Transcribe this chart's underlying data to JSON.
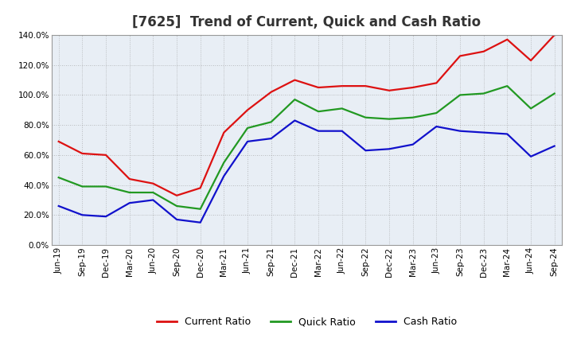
{
  "title": "[7625]  Trend of Current, Quick and Cash Ratio",
  "labels": [
    "Jun-19",
    "Sep-19",
    "Dec-19",
    "Mar-20",
    "Jun-20",
    "Sep-20",
    "Dec-20",
    "Mar-21",
    "Jun-21",
    "Sep-21",
    "Dec-21",
    "Mar-22",
    "Jun-22",
    "Sep-22",
    "Dec-22",
    "Mar-23",
    "Jun-23",
    "Sep-23",
    "Dec-23",
    "Mar-24",
    "Jun-24",
    "Sep-24"
  ],
  "current_ratio": [
    0.69,
    0.61,
    0.6,
    0.44,
    0.41,
    0.33,
    0.38,
    0.75,
    0.9,
    1.02,
    1.1,
    1.05,
    1.06,
    1.06,
    1.03,
    1.05,
    1.08,
    1.26,
    1.29,
    1.37,
    1.23,
    1.4
  ],
  "quick_ratio": [
    0.45,
    0.39,
    0.39,
    0.35,
    0.35,
    0.26,
    0.24,
    0.55,
    0.78,
    0.82,
    0.97,
    0.89,
    0.91,
    0.85,
    0.84,
    0.85,
    0.88,
    1.0,
    1.01,
    1.06,
    0.91,
    1.01
  ],
  "cash_ratio": [
    0.26,
    0.2,
    0.19,
    0.28,
    0.3,
    0.17,
    0.15,
    0.46,
    0.69,
    0.71,
    0.83,
    0.76,
    0.76,
    0.63,
    0.64,
    0.67,
    0.79,
    0.76,
    0.75,
    0.74,
    0.59,
    0.66
  ],
  "ylim": [
    0.0,
    1.4
  ],
  "yticks": [
    0.0,
    0.2,
    0.4,
    0.6,
    0.8,
    1.0,
    1.2,
    1.4
  ],
  "current_color": "#dd1111",
  "quick_color": "#229922",
  "cash_color": "#1111cc",
  "bg_color": "#ffffff",
  "plot_bg_color": "#e8eef5",
  "grid_color": "#999999",
  "title_color": "#333333",
  "legend_labels": [
    "Current Ratio",
    "Quick Ratio",
    "Cash Ratio"
  ],
  "title_fontsize": 12,
  "tick_fontsize": 7.5,
  "legend_fontsize": 9,
  "linewidth": 1.6
}
